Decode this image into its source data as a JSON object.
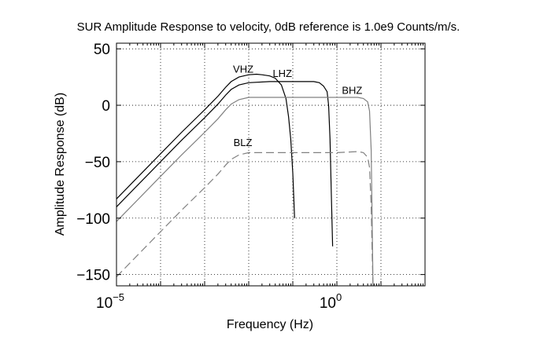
{
  "chart_data": {
    "type": "line",
    "title": "SUR Amplitude Response to velocity, 0dB reference is 1.0e9 Counts/m/s.",
    "xlabel": "Frequency (Hz)",
    "ylabel": "Amplitude Response (dB)",
    "x_scale": "log",
    "xlim": [
      1e-05,
      100
    ],
    "ylim": [
      -160,
      55
    ],
    "grid": true,
    "x_ticks": [
      {
        "value": 1e-05,
        "base": "10",
        "exp": "−5"
      },
      {
        "value": 1,
        "base": "10",
        "exp": "0"
      }
    ],
    "y_ticks": [
      {
        "value": 50,
        "label": "50"
      },
      {
        "value": 0,
        "label": "0"
      },
      {
        "value": -50,
        "label": "−50"
      },
      {
        "value": -100,
        "label": "−100"
      },
      {
        "value": -150,
        "label": "−150"
      }
    ],
    "series": [
      {
        "name": "VHZ",
        "color": "#000000",
        "dash": "",
        "label_at": [
          0.0044,
          29
        ],
        "points": [
          [
            1e-05,
            -83
          ],
          [
            0.0001,
            -43
          ],
          [
            0.0003,
            -24
          ],
          [
            0.001,
            -4
          ],
          [
            0.002,
            8
          ],
          [
            0.003,
            16
          ],
          [
            0.004,
            21
          ],
          [
            0.006,
            25
          ],
          [
            0.01,
            27
          ],
          [
            0.015,
            27.5
          ],
          [
            0.02,
            27
          ],
          [
            0.03,
            26
          ],
          [
            0.04,
            24
          ],
          [
            0.055,
            18
          ],
          [
            0.07,
            6
          ],
          [
            0.08,
            -10
          ],
          [
            0.09,
            -30
          ],
          [
            0.1,
            -60
          ],
          [
            0.11,
            -100
          ]
        ]
      },
      {
        "name": "LHZ",
        "color": "#000000",
        "dash": "",
        "label_at": [
          0.035,
          25
        ],
        "points": [
          [
            1e-05,
            -90
          ],
          [
            0.0001,
            -50
          ],
          [
            0.0003,
            -31
          ],
          [
            0.001,
            -11
          ],
          [
            0.002,
            1
          ],
          [
            0.003,
            9
          ],
          [
            0.004,
            14
          ],
          [
            0.006,
            18
          ],
          [
            0.01,
            20
          ],
          [
            0.03,
            21
          ],
          [
            0.1,
            21
          ],
          [
            0.3,
            21
          ],
          [
            0.4,
            20
          ],
          [
            0.5,
            17
          ],
          [
            0.6,
            12
          ],
          [
            0.65,
            0
          ],
          [
            0.7,
            -30
          ],
          [
            0.75,
            -80
          ],
          [
            0.8,
            -125
          ]
        ]
      },
      {
        "name": "BHZ",
        "color": "#808080",
        "dash": "",
        "label_at": [
          1.3,
          10
        ],
        "points": [
          [
            1e-05,
            -103
          ],
          [
            0.0001,
            -63
          ],
          [
            0.0003,
            -44
          ],
          [
            0.001,
            -24
          ],
          [
            0.002,
            -12
          ],
          [
            0.003,
            -4
          ],
          [
            0.004,
            1
          ],
          [
            0.006,
            5
          ],
          [
            0.01,
            7
          ],
          [
            0.1,
            7
          ],
          [
            1,
            7
          ],
          [
            3,
            7
          ],
          [
            4,
            6
          ],
          [
            5,
            3
          ],
          [
            5.5,
            -5
          ],
          [
            6,
            -40
          ],
          [
            6.3,
            -100
          ],
          [
            6.6,
            -160
          ]
        ]
      },
      {
        "name": "BLZ",
        "color": "#808080",
        "dash": "10 5",
        "label_at": [
          0.0045,
          -36
        ],
        "points": [
          [
            1e-05,
            -152
          ],
          [
            0.0001,
            -112
          ],
          [
            0.0003,
            -93
          ],
          [
            0.001,
            -73
          ],
          [
            0.002,
            -61
          ],
          [
            0.003,
            -53
          ],
          [
            0.004,
            -48
          ],
          [
            0.006,
            -44
          ],
          [
            0.01,
            -42
          ],
          [
            0.1,
            -42
          ],
          [
            1,
            -42
          ],
          [
            3,
            -41
          ],
          [
            4,
            -42
          ],
          [
            5,
            -46
          ],
          [
            5.5,
            -55
          ],
          [
            6,
            -90
          ],
          [
            6.3,
            -130
          ],
          [
            6.6,
            -160
          ]
        ]
      }
    ]
  }
}
